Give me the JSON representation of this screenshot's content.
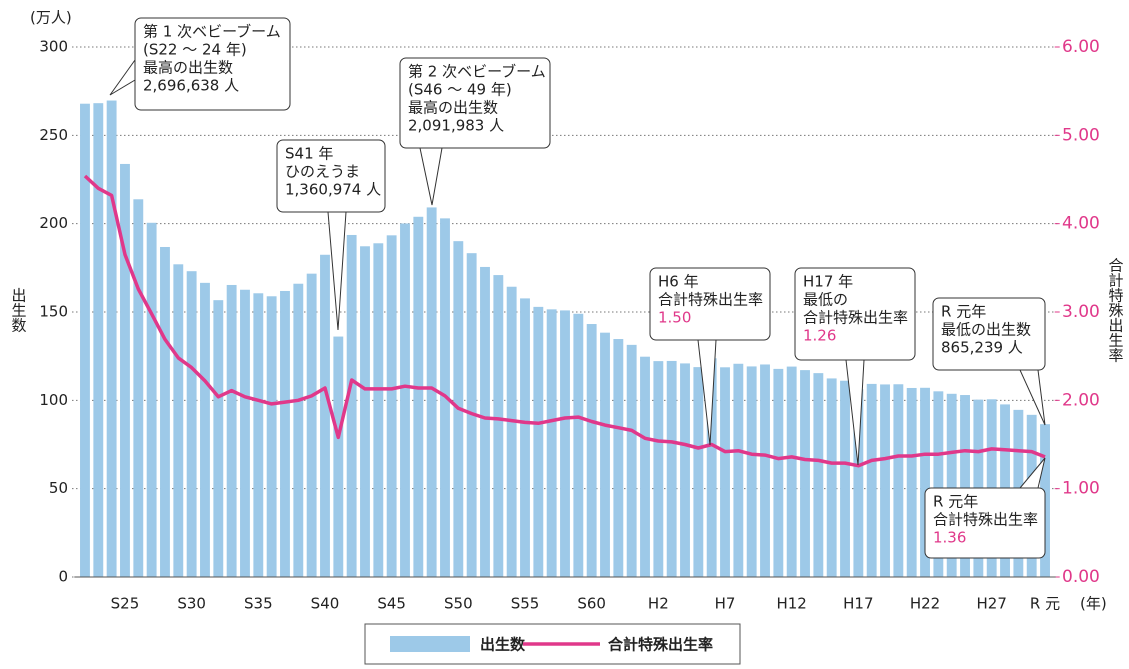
{
  "chart_data": {
    "type": "bar_line",
    "y_unit": "(万人)",
    "x_unit": "(年)",
    "ylabel": "出生数",
    "y2label": "合計特殊出生率",
    "categories": [
      null,
      null,
      null,
      "S25",
      null,
      null,
      null,
      null,
      "S30",
      null,
      null,
      null,
      null,
      "S35",
      null,
      null,
      null,
      null,
      "S40",
      null,
      null,
      null,
      null,
      "S45",
      null,
      null,
      null,
      null,
      "S50",
      null,
      null,
      null,
      null,
      "S55",
      null,
      null,
      null,
      null,
      "S60",
      null,
      null,
      null,
      null,
      "H2",
      null,
      null,
      null,
      null,
      "H7",
      null,
      null,
      null,
      null,
      "H12",
      null,
      null,
      null,
      null,
      "H17",
      null,
      null,
      null,
      null,
      "H22",
      null,
      null,
      null,
      null,
      "H27",
      null,
      null,
      null,
      "R 元"
    ],
    "series": [
      {
        "name": "出生数",
        "color": "#9dc9e8",
        "values": [
          267.9,
          268.2,
          269.7,
          233.8,
          213.8,
          200.5,
          186.8,
          177.0,
          173.1,
          166.5,
          156.7,
          165.3,
          162.6,
          160.6,
          158.9,
          161.9,
          166.0,
          171.7,
          182.4,
          136.1,
          193.6,
          187.2,
          188.9,
          193.4,
          200.1,
          203.9,
          209.2,
          203.0,
          190.1,
          183.3,
          175.5,
          170.9,
          164.3,
          157.7,
          152.9,
          151.5,
          150.9,
          149.0,
          143.2,
          138.3,
          134.7,
          131.4,
          124.7,
          122.2,
          122.3,
          120.9,
          118.8,
          123.8,
          118.7,
          120.7,
          119.2,
          120.3,
          117.8,
          119.1,
          117.1,
          115.4,
          112.4,
          111.1,
          106.3,
          109.3,
          109.0,
          109.1,
          107.0,
          107.1,
          105.1,
          103.7,
          103.0,
          100.4,
          100.6,
          97.7,
          94.6,
          91.8,
          86.5
        ]
      },
      {
        "name": "合計特殊出生率",
        "color": "#e0388a",
        "axis": "y2",
        "values": [
          4.54,
          4.4,
          4.32,
          3.65,
          3.26,
          2.98,
          2.69,
          2.48,
          2.37,
          2.22,
          2.04,
          2.11,
          2.04,
          2.0,
          1.96,
          1.98,
          2.0,
          2.05,
          2.14,
          1.58,
          2.23,
          2.13,
          2.13,
          2.13,
          2.16,
          2.14,
          2.14,
          2.05,
          1.91,
          1.85,
          1.8,
          1.79,
          1.77,
          1.75,
          1.74,
          1.77,
          1.8,
          1.81,
          1.76,
          1.72,
          1.69,
          1.66,
          1.57,
          1.54,
          1.53,
          1.5,
          1.46,
          1.5,
          1.42,
          1.43,
          1.39,
          1.38,
          1.34,
          1.36,
          1.33,
          1.32,
          1.29,
          1.29,
          1.26,
          1.32,
          1.34,
          1.37,
          1.37,
          1.39,
          1.39,
          1.41,
          1.43,
          1.42,
          1.45,
          1.44,
          1.43,
          1.42,
          1.36
        ]
      }
    ],
    "ylim": [
      0,
      300
    ],
    "yticks": [
      0,
      50,
      100,
      150,
      200,
      250,
      300
    ],
    "y2lim": [
      0,
      6
    ],
    "y2ticks": [
      {
        "value": 0,
        "label": "0.00"
      },
      {
        "value": 1,
        "label": "1.00"
      },
      {
        "value": 2,
        "label": "2.00"
      },
      {
        "value": 3,
        "label": "3.00"
      },
      {
        "value": 4,
        "label": "4.00"
      },
      {
        "value": 5,
        "label": "5.00"
      },
      {
        "value": 6,
        "label": "6.00"
      }
    ],
    "grid": true,
    "annotations": [
      {
        "lines": [
          "第 1 次ベビーブーム",
          "(S22 ～ 24 年)",
          "最高の出生数",
          "2,696,638 人"
        ]
      },
      {
        "lines": [
          "第 2 次ベビーブーム",
          "(S46 ～ 49 年)",
          "最高の出生数",
          "2,091,983 人"
        ]
      },
      {
        "lines": [
          "S41 年",
          "ひのえうま",
          "1,360,974 人"
        ]
      },
      {
        "lines": [
          "H6 年",
          "合計特殊出生率"
        ],
        "value_label": "1.50"
      },
      {
        "lines": [
          "H17 年",
          "最低の",
          "合計特殊出生率"
        ],
        "value_label": "1.26"
      },
      {
        "lines": [
          "R 元年",
          "最低の出生数",
          "865,239 人"
        ]
      },
      {
        "lines": [
          "R 元年",
          "合計特殊出生率"
        ],
        "value_label": "1.36"
      }
    ]
  }
}
